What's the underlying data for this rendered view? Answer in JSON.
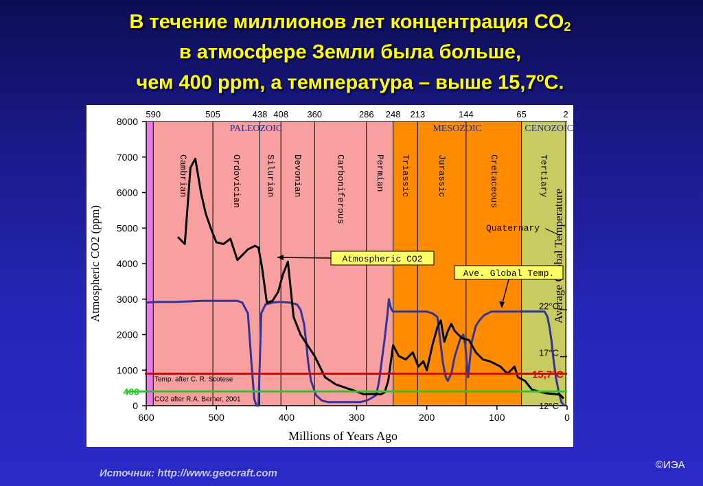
{
  "slide": {
    "title_line1": "В течение миллионов лет концентрация CO",
    "title_line1_sub": "2",
    "title_line2": "в атмосфере Земли была больше,",
    "title_line3_pre": "чем 400 ppm, а температура – выше 15,7",
    "title_line3_sup": "о",
    "title_line3_post": "С.",
    "source": "Источник: http://www.geocraft.com",
    "copyright": "©ИЭА"
  },
  "colors": {
    "co2_line": "#000000",
    "temp_line": "#333399",
    "line_15_7": "#e00000",
    "line_400": "#22cc22",
    "paleozoic_bg": "#f8a0a0",
    "mesozoic_bg": "#ff8c00",
    "cenozoic_bg": "#c8cc60",
    "precambrian_bg": "#e67ee6"
  },
  "chart_data": {
    "type": "line",
    "xlabel": "Millions of Years Ago",
    "ylabel_left": "Atmospheric CO2 (ppm)",
    "ylabel_right": "Average Global Temperature",
    "xlim": [
      600,
      0
    ],
    "ylim": [
      0,
      8000
    ],
    "x_ticks": [
      "600",
      "500",
      "400",
      "300",
      "200",
      "100",
      "0"
    ],
    "y_ticks": [
      "0",
      "1000",
      "2000",
      "3000",
      "4000",
      "5000",
      "6000",
      "7000",
      "8000"
    ],
    "top_ticks": [
      "590",
      "505",
      "438",
      "408",
      "360",
      "286",
      "248",
      "213",
      "144",
      "65",
      "2"
    ],
    "temp_ticks": [
      {
        "label": "22°C",
        "level": 2700
      },
      {
        "label": "17°C",
        "level": 1380
      },
      {
        "label": "12°C",
        "level": 0
      }
    ],
    "eras": [
      {
        "name": "PALEOZOIC",
        "start": 590,
        "end": 248
      },
      {
        "name": "MESOZOIC",
        "start": 248,
        "end": 65
      },
      {
        "name": "CENOZOIC",
        "start": 65,
        "end": 2
      }
    ],
    "periods": [
      {
        "name": "Cambrian",
        "start": 590,
        "end": 505
      },
      {
        "name": "Ordovician",
        "start": 505,
        "end": 438
      },
      {
        "name": "Silurian",
        "start": 438,
        "end": 408
      },
      {
        "name": "Devonian",
        "start": 408,
        "end": 360
      },
      {
        "name": "Carboniferous",
        "start": 360,
        "end": 286
      },
      {
        "name": "Permian",
        "start": 286,
        "end": 248
      },
      {
        "name": "Triassic",
        "start": 248,
        "end": 213
      },
      {
        "name": "Jurassic",
        "start": 213,
        "end": 144
      },
      {
        "name": "Cretaceous",
        "start": 144,
        "end": 65
      },
      {
        "name": "Tertiary",
        "start": 65,
        "end": 2
      }
    ],
    "series": [
      {
        "name": "Atmospheric CO2",
        "x": [
          555,
          545,
          537,
          530,
          522,
          515,
          508,
          500,
          490,
          480,
          470,
          455,
          445,
          440,
          435,
          428,
          420,
          412,
          405,
          398,
          390,
          380,
          370,
          360,
          345,
          330,
          300,
          290,
          275,
          265,
          260,
          255,
          248,
          240,
          230,
          220,
          212,
          205,
          200,
          192,
          185,
          180,
          175,
          170,
          165,
          160,
          150,
          140,
          130,
          120,
          110,
          95,
          85,
          75,
          70,
          60,
          50,
          40,
          30,
          20,
          10,
          5
        ],
        "y": [
          4750,
          4550,
          6700,
          6950,
          6000,
          5400,
          5000,
          4600,
          4550,
          4700,
          4100,
          4400,
          4500,
          4450,
          3900,
          2900,
          2950,
          3200,
          3700,
          4050,
          2500,
          2000,
          1700,
          1400,
          800,
          600,
          400,
          320,
          330,
          320,
          380,
          700,
          1700,
          1400,
          1300,
          1500,
          1100,
          1250,
          1000,
          1700,
          2200,
          2400,
          1800,
          2100,
          2300,
          2100,
          1900,
          1850,
          1500,
          1300,
          1250,
          1100,
          900,
          1100,
          800,
          700,
          450,
          400,
          350,
          330,
          310,
          200
        ]
      },
      {
        "name": "Ave. Global Temp.",
        "x": [
          600,
          585,
          560,
          520,
          490,
          470,
          463,
          455,
          450,
          446,
          443,
          440,
          436,
          430,
          420,
          410,
          395,
          385,
          380,
          375,
          372,
          369,
          365,
          358,
          350,
          345,
          340,
          330,
          322,
          312,
          302,
          295,
          285,
          280,
          272,
          268,
          260,
          256,
          254,
          252,
          250,
          248,
          243,
          235,
          220,
          200,
          192,
          185,
          183,
          180,
          177,
          173,
          170,
          165,
          160,
          152,
          148,
          145,
          143,
          141,
          139,
          136,
          130,
          125,
          118,
          108,
          95,
          85,
          75,
          70,
          65,
          45,
          32,
          28,
          25,
          22,
          20,
          16,
          12,
          8,
          4
        ],
        "y": [
          2900,
          2920,
          2920,
          2950,
          2950,
          2950,
          2900,
          2600,
          1200,
          200,
          0,
          0,
          2600,
          2850,
          2900,
          2920,
          2900,
          2850,
          2700,
          2300,
          1800,
          1200,
          700,
          300,
          150,
          120,
          100,
          100,
          100,
          100,
          100,
          100,
          150,
          200,
          300,
          700,
          1900,
          2600,
          3000,
          2800,
          2700,
          2650,
          2650,
          2650,
          2650,
          2650,
          2600,
          2500,
          2200,
          1700,
          1200,
          800,
          700,
          900,
          1400,
          1900,
          2000,
          1700,
          1200,
          800,
          1200,
          1800,
          2250,
          2400,
          2550,
          2650,
          2650,
          2650,
          2650,
          2650,
          2650,
          2650,
          2650,
          2500,
          2200,
          1800,
          1400,
          800,
          400,
          100,
          0
        ]
      }
    ],
    "reference_lines": [
      {
        "name": "15,7°C",
        "level": 900
      },
      {
        "name": "400",
        "level": 400
      }
    ],
    "annotations": {
      "co2_label": "Atmospheric CO2",
      "temp_label": "Ave. Global Temp.",
      "quaternary_label": "Quaternary",
      "credit_line1": "Temp. after C. R. Scotese",
      "credit_line2": "CO2 after R.A. Berner, 2001"
    }
  }
}
